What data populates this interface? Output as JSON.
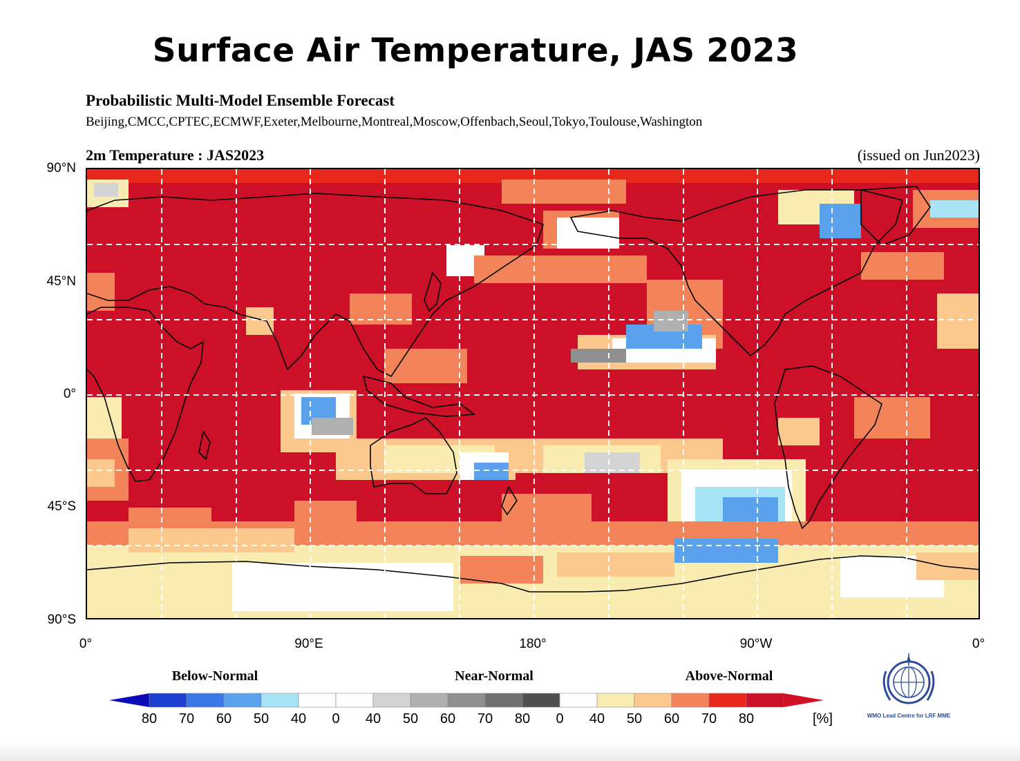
{
  "title": "Surface Air Temperature, JAS 2023",
  "subtitle": "Probabilistic Multi-Model Ensemble Forecast",
  "models": "Beijing,CMCC,CPTEC,ECMWF,Exeter,Melbourne,Montreal,Moscow,Offenbach,Seoul,Tokyo,Toulouse,Washington",
  "map_label": "2m Temperature : JAS2023",
  "issued": "(issued on Jun2023)",
  "lat_labels": [
    "90°N",
    "45°N",
    "0°",
    "45°S",
    "90°S"
  ],
  "lon_labels": [
    "0°",
    "90°E",
    "180°",
    "90°W",
    "0°"
  ],
  "categories": [
    "Below-Normal",
    "Near-Normal",
    "Above-Normal"
  ],
  "legend_ticks": [
    "80",
    "70",
    "60",
    "50",
    "40",
    "0",
    "40",
    "50",
    "60",
    "70",
    "80",
    "0",
    "40",
    "50",
    "60",
    "70",
    "80"
  ],
  "legend_unit": "[%]",
  "legend_colors": [
    "#1d3fcf",
    "#3a78e6",
    "#5aa2ec",
    "#a8e4f6",
    "#ffffff",
    "#ffffff",
    "#d4d4d4",
    "#b0b0b0",
    "#909090",
    "#707070",
    "#505050",
    "#ffffff",
    "#f8ecb0",
    "#fbc98d",
    "#f3845a",
    "#e8281c",
    "#cc1027"
  ],
  "legend_end_colors": {
    "low": "#0b0bb8",
    "high": "#d01024"
  },
  "map_colors": {
    "strong_above": "#cc1027",
    "above": "#e8281c",
    "moderate_above": "#f3845a",
    "weak_above": "#fbc98d",
    "slight_above": "#f8ecb0",
    "neutral": "#ffffff",
    "near_normal": "#b0b0b0",
    "near_normal_light": "#d4d4d4",
    "below": "#5aa2ec",
    "below_light": "#a8e4f6"
  },
  "logo": {
    "name": "wmo-emblem",
    "text": "WMO Lead Centre for LRF MME"
  }
}
